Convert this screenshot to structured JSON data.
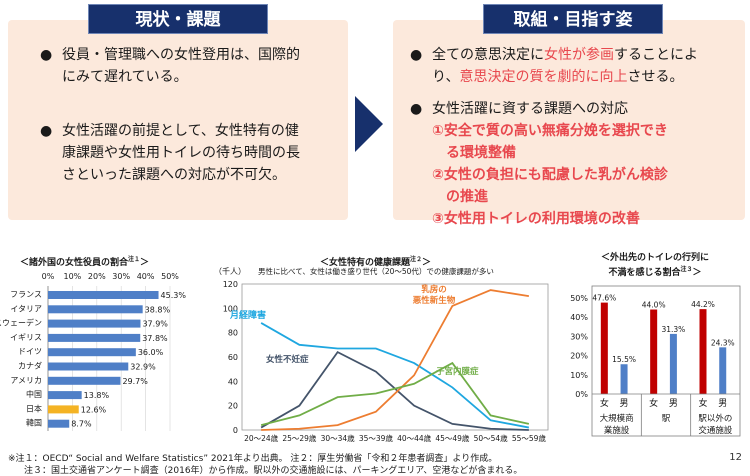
{
  "left": {
    "header": "現状・課題",
    "bullets": [
      {
        "l1": "役員・管理職への女性登用は、国際的",
        "l2": "にみて遅れている。"
      },
      {
        "l1": "女性活躍の前提として、女性特有の健",
        "l2": "康課題や女性用トイレの待ち時間の長",
        "l3": "さといった課題への対応が不可欠。"
      }
    ]
  },
  "right": {
    "header": "取組・目指す姿",
    "b1": {
      "p1": "全ての意思決定に",
      "p2": "女性が参画",
      "p3": "することによ",
      "p4": "り、",
      "p5": "意思決定の質を劇的に向上",
      "p6": "させる。"
    },
    "b2": {
      "text": "女性活躍に資する課題への対応"
    },
    "items": [
      {
        "num": "①",
        "l1": "安全で質の高い無痛分娩を選択でき",
        "l2": "る環境整備"
      },
      {
        "num": "②",
        "l1": "女性の負担にも配慮した乳がん検診",
        "l2": "の推進"
      },
      {
        "num": "③",
        "l1": "女性用トイレの利用環境の改善",
        "l2": ""
      }
    ]
  },
  "chart1": {
    "title": "＜諸外国の女性役員の割合",
    "note": "注１",
    "title_end": "＞",
    "axis_ticks": [
      "0%",
      "10%",
      "20%",
      "30%",
      "40%",
      "50%"
    ],
    "chart_data": {
      "type": "bar",
      "categories": [
        "フランス",
        "イタリア",
        "スウェーデン",
        "イギリス",
        "ドイツ",
        "カナダ",
        "アメリカ",
        "中国",
        "日本",
        "韓国"
      ],
      "values": [
        45.3,
        38.8,
        37.9,
        37.8,
        36.0,
        32.9,
        29.7,
        13.8,
        12.6,
        8.7
      ],
      "value_labels": [
        "45.3%",
        "38.8%",
        "37.9%",
        "37.8%",
        "36.0%",
        "32.9%",
        "29.7%",
        "13.8%",
        "12.6%",
        "8.7%"
      ],
      "xlim": [
        0,
        50
      ],
      "colors": {
        "bar": "#4f7fc7",
        "highlight": "#f4b324"
      },
      "highlight_index": 8
    }
  },
  "chart2": {
    "title": "＜女性特有の健康課題",
    "note": "注２",
    "title_end": "＞",
    "unit": "（千人）",
    "subtitle": "男性に比べて、女性は働き盛り世代（20～50代）での健康課題が多い",
    "chart_data": {
      "type": "line",
      "categories": [
        "20～24歳",
        "25～29歳",
        "30～34歳",
        "35～39歳",
        "40～44歳",
        "45～49歳",
        "50～54歳",
        "55～59歳"
      ],
      "ylim": [
        0,
        120
      ],
      "yticks": [
        "0",
        "20",
        "40",
        "60",
        "80",
        "100",
        "120"
      ],
      "series": [
        {
          "name": "月経障害",
          "color": "#1fa7e0",
          "values": [
            88,
            70,
            67,
            67,
            55,
            35,
            8,
            2
          ]
        },
        {
          "name": "女性不妊症",
          "color": "#44546a",
          "values": [
            2,
            20,
            64,
            48,
            20,
            5,
            1,
            0
          ]
        },
        {
          "name": "乳房の悪性新生物",
          "l1": "乳房の",
          "l2": "悪性新生物",
          "color": "#ed7d31",
          "values": [
            0,
            1,
            4,
            15,
            45,
            102,
            115,
            110
          ]
        },
        {
          "name": "子宮内膜症",
          "color": "#70ad47",
          "values": [
            4,
            12,
            27,
            30,
            38,
            55,
            12,
            5
          ]
        }
      ]
    }
  },
  "chart3": {
    "title_l1": "＜外出先のトイレの行列に",
    "title_l2": "不満を感じる割合",
    "note": "注３",
    "title_end": "＞",
    "yticks": [
      "0%",
      "10%",
      "20%",
      "30%",
      "40%",
      "50%"
    ],
    "chart_data": {
      "type": "bar",
      "ylim": [
        0,
        50
      ],
      "groups": [
        {
          "l1": "大規模商",
          "l2": "業施設",
          "f": 47.6,
          "m": 15.5,
          "fl": "47.6%",
          "ml": "15.5%"
        },
        {
          "l1": "駅",
          "l2": "",
          "f": 44.0,
          "m": 31.3,
          "fl": "44.0%",
          "ml": "31.3%"
        },
        {
          "l1": "駅以外の",
          "l2": "交通施設",
          "f": 44.2,
          "m": 24.3,
          "fl": "44.2%",
          "ml": "24.3%"
        }
      ],
      "female_label": "女",
      "male_label": "男",
      "colors": {
        "female": "#c00000",
        "male": "#4f7fc7"
      }
    }
  },
  "footnotes": {
    "line1": "※注１：OECD“ Social and Welfare Statistics” 2021年より出典。 注２：厚生労働省「令和２年患者調査」より作成。",
    "line2": "注３：国土交通省アンケート調査（2016年）から作成。駅以外の交通施設には、パーキングエリア、空港などが含まれる。"
  },
  "page_number": "12"
}
